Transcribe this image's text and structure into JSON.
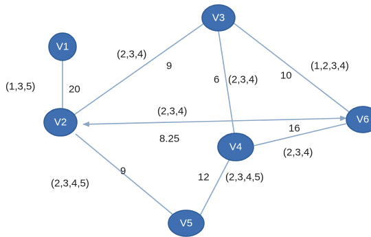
{
  "graph": {
    "nodes": [
      {
        "id": "V1",
        "label": "V1"
      },
      {
        "id": "V2",
        "label": "V2"
      },
      {
        "id": "V3",
        "label": "V3"
      },
      {
        "id": "V4",
        "label": "V4"
      },
      {
        "id": "V5",
        "label": "V5"
      },
      {
        "id": "V6",
        "label": "V6"
      }
    ],
    "edges": [
      {
        "from": "V1",
        "to": "V2",
        "weight": "20",
        "tuple": "(1,3,5)"
      },
      {
        "from": "V2",
        "to": "V3",
        "weight": "9",
        "tuple": "(2,3,4)"
      },
      {
        "from": "V3",
        "to": "V4",
        "weight": "6",
        "tuple": "(2,3,4)"
      },
      {
        "from": "V3",
        "to": "V6",
        "weight": "10",
        "tuple": "(1,2,3,4)"
      },
      {
        "from": "V2",
        "to": "V6",
        "weight": "8.25",
        "tuple": "(2,3,4)",
        "bidirectional": true
      },
      {
        "from": "V4",
        "to": "V6",
        "weight": "16",
        "tuple": "(2,3,4)"
      },
      {
        "from": "V2",
        "to": "V5",
        "weight": "9",
        "tuple": "(2,3,4,5)"
      },
      {
        "from": "V4",
        "to": "V5",
        "weight": "12",
        "tuple": "(2,3,4,5)"
      }
    ]
  },
  "colors": {
    "node_fill": "#3f6fb0",
    "edge": "#8aa7c8",
    "text": "#1a1a1a"
  }
}
